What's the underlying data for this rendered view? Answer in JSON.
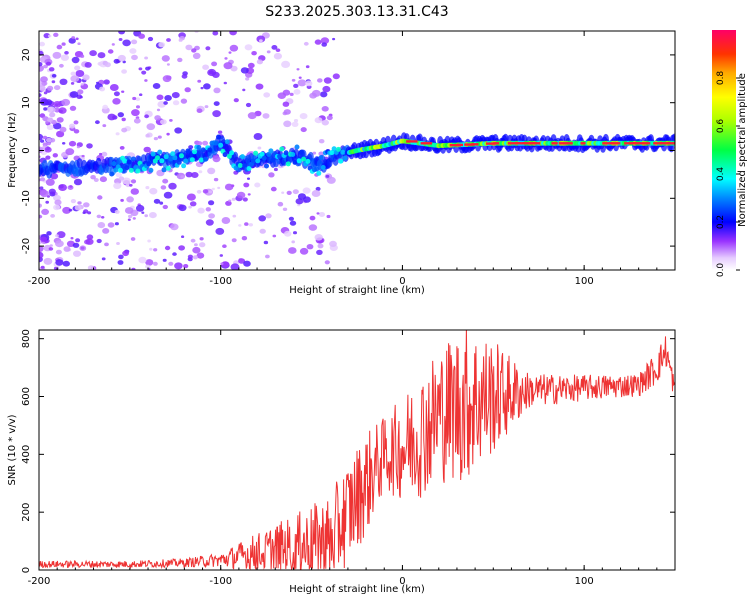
{
  "title": "S233.2025.303.13.31.C43",
  "chart_data": [
    {
      "type": "heatmap",
      "xlabel": "Height of straight line (km)",
      "ylabel": "Frequency (Hz)",
      "xlim": [
        -200,
        150
      ],
      "ylim": [
        -25,
        25
      ],
      "xticks": [
        -200,
        -100,
        0,
        100
      ],
      "yticks": [
        -20,
        -10,
        0,
        10,
        20
      ],
      "ridge": [
        {
          "x": -200,
          "f": -4
        },
        {
          "x": -150,
          "f": -3
        },
        {
          "x": -110,
          "f": -1
        },
        {
          "x": -100,
          "f": 2
        },
        {
          "x": -90,
          "f": -3
        },
        {
          "x": -75,
          "f": -2
        },
        {
          "x": -60,
          "f": -1
        },
        {
          "x": -45,
          "f": -3
        },
        {
          "x": -35,
          "f": -1
        },
        {
          "x": -25,
          "f": 0
        },
        {
          "x": -10,
          "f": 1
        },
        {
          "x": 0,
          "f": 2
        },
        {
          "x": 20,
          "f": 1
        },
        {
          "x": 50,
          "f": 1.5
        },
        {
          "x": 100,
          "f": 1.5
        },
        {
          "x": 150,
          "f": 1.5
        }
      ],
      "colorbar": {
        "label": "Normalized spectral amplitude",
        "ticks": [
          "0.0",
          "0.2",
          "0.4",
          "0.6",
          "0.8"
        ],
        "range": [
          0,
          1
        ]
      }
    },
    {
      "type": "line",
      "xlabel": "Height of straight line (km)",
      "ylabel": "SNR (10 * v/v)",
      "xlim": [
        -200,
        150
      ],
      "ylim": [
        0,
        830
      ],
      "xticks": [
        -200,
        -100,
        0,
        100
      ],
      "yticks": [
        0,
        200,
        400,
        600,
        800
      ],
      "color": "#ee3333",
      "envelope": [
        {
          "x": -200,
          "mean": 20,
          "noise": 12
        },
        {
          "x": -150,
          "mean": 20,
          "noise": 12
        },
        {
          "x": -120,
          "mean": 25,
          "noise": 15
        },
        {
          "x": -100,
          "mean": 35,
          "noise": 25
        },
        {
          "x": -80,
          "mean": 60,
          "noise": 70
        },
        {
          "x": -60,
          "mean": 80,
          "noise": 110
        },
        {
          "x": -40,
          "mean": 100,
          "noise": 160
        },
        {
          "x": -30,
          "mean": 200,
          "noise": 180
        },
        {
          "x": -20,
          "mean": 300,
          "noise": 180
        },
        {
          "x": -10,
          "mean": 400,
          "noise": 130
        },
        {
          "x": 0,
          "mean": 420,
          "noise": 180
        },
        {
          "x": 10,
          "mean": 470,
          "noise": 220
        },
        {
          "x": 20,
          "mean": 540,
          "noise": 240
        },
        {
          "x": 35,
          "mean": 580,
          "noise": 280
        },
        {
          "x": 50,
          "mean": 600,
          "noise": 200
        },
        {
          "x": 70,
          "mean": 620,
          "noise": 60
        },
        {
          "x": 100,
          "mean": 630,
          "noise": 45
        },
        {
          "x": 130,
          "mean": 640,
          "noise": 40
        },
        {
          "x": 140,
          "mean": 700,
          "noise": 60
        },
        {
          "x": 145,
          "mean": 760,
          "noise": 60
        },
        {
          "x": 150,
          "mean": 620,
          "noise": 40
        }
      ]
    }
  ]
}
